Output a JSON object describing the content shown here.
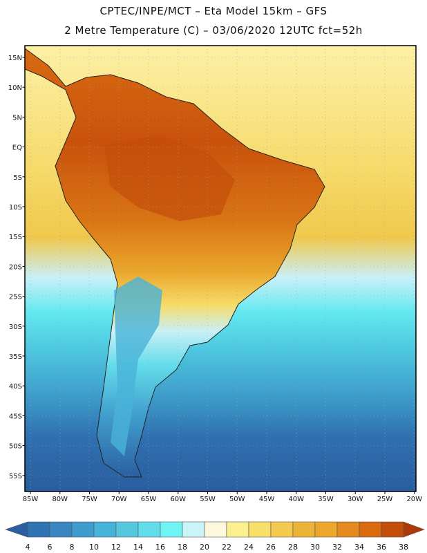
{
  "header": {
    "title_line1": "CPTEC/INPE/MCT  –   Eta Model 15km  –  GFS",
    "title_line2": "2 Metre Temperature (C) – 03/06/2020 12UTC fct=52h"
  },
  "map": {
    "region": "South America",
    "variable": "2 Metre Temperature",
    "units": "C",
    "lon_range": [
      -85,
      -20
    ],
    "lat_range": [
      -58,
      17
    ],
    "lat_ticks": [
      "15N",
      "10N",
      "5N",
      "EQ",
      "5S",
      "10S",
      "15S",
      "20S",
      "25S",
      "30S",
      "35S",
      "40S",
      "45S",
      "50S",
      "55S"
    ],
    "lon_ticks": [
      "85W",
      "80W",
      "75W",
      "70W",
      "65W",
      "60W",
      "55W",
      "50W",
      "45W",
      "40W",
      "35W",
      "30W",
      "25W",
      "20W"
    ]
  },
  "colorbar": {
    "labels": [
      "4",
      "6",
      "8",
      "10",
      "12",
      "14",
      "16",
      "18",
      "20",
      "22",
      "24",
      "26",
      "28",
      "30",
      "32",
      "34",
      "36",
      "38"
    ],
    "colors": [
      "#2b5fa0",
      "#2f73b3",
      "#3a86c2",
      "#3f9ccc",
      "#48b3d8",
      "#55c8e0",
      "#63dceb",
      "#6ff5f5",
      "#c9f4f8",
      "#fdf7dc",
      "#fbf08f",
      "#f7df6a",
      "#f3ca4f",
      "#ecb53a",
      "#eda72a",
      "#e58a1e",
      "#d96a10",
      "#c34e0a",
      "#ab3a08"
    ]
  }
}
